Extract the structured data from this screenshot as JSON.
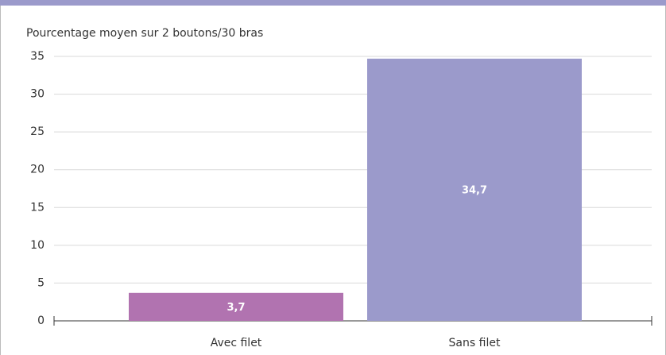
{
  "chart_data": {
    "type": "bar",
    "title": "Pourcentage moyen sur 2 boutons/30 bras",
    "categories": [
      "Avec filet",
      "Sans filet"
    ],
    "values": [
      3.7,
      34.7
    ],
    "value_labels": [
      "3,7",
      "34,7"
    ],
    "colors": [
      "#b173b0",
      "#9b9acb"
    ],
    "ylim": [
      0,
      35
    ],
    "yticks": [
      0,
      5,
      10,
      15,
      20,
      25,
      30,
      35
    ],
    "grid": true
  }
}
